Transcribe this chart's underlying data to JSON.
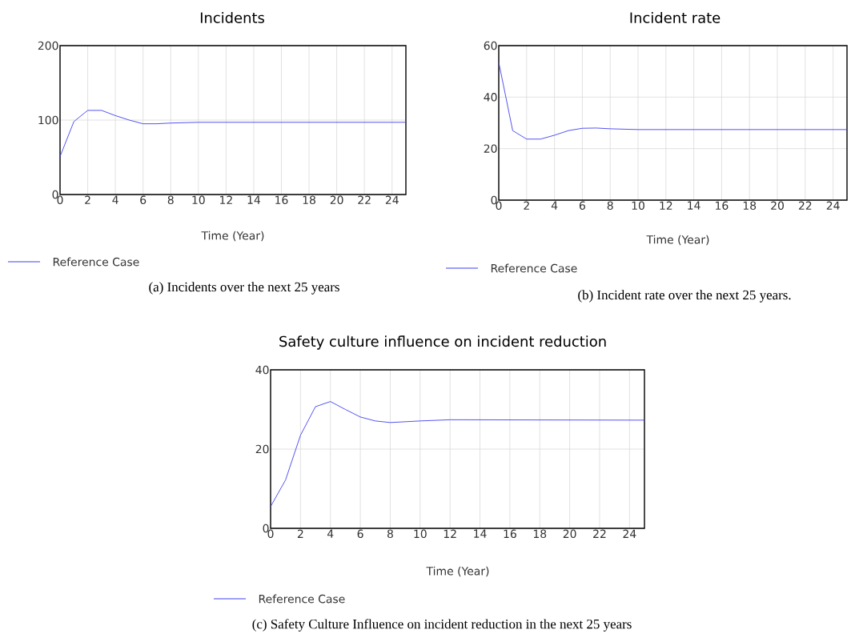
{
  "chart_data": [
    {
      "type": "line",
      "title": "Incidents",
      "xlabel": "Time (Year)",
      "x": [
        0,
        1,
        2,
        3,
        4,
        5,
        6,
        7,
        8,
        10,
        25
      ],
      "xlim": [
        0,
        25
      ],
      "xticks": [
        0,
        2,
        4,
        6,
        8,
        10,
        12,
        14,
        16,
        18,
        20,
        22,
        24
      ],
      "ylim": [
        0,
        200
      ],
      "yticks": [
        0,
        100,
        200
      ],
      "grid": true,
      "legend": "bottom",
      "marker": "none",
      "line_style": "solid",
      "series": [
        {
          "name": "Reference Case",
          "color": "#4040f0",
          "values": [
            51,
            98,
            113,
            113,
            106,
            100,
            95,
            95,
            96,
            97,
            97
          ]
        }
      ],
      "annotations": [
        "(a) Incidents over the next 25 years"
      ]
    },
    {
      "type": "line",
      "title": "Incident rate",
      "xlabel": "Time (Year)",
      "x": [
        0,
        1,
        2,
        3,
        4,
        5,
        6,
        7,
        8,
        10,
        25
      ],
      "xlim": [
        0,
        25
      ],
      "xticks": [
        0,
        2,
        4,
        6,
        8,
        10,
        12,
        14,
        16,
        18,
        20,
        22,
        24
      ],
      "ylim": [
        0,
        60
      ],
      "yticks": [
        0,
        20,
        40,
        60
      ],
      "grid": true,
      "legend": "bottom",
      "marker": "none",
      "line_style": "solid",
      "series": [
        {
          "name": "Reference Case",
          "color": "#4040f0",
          "values": [
            53.5,
            27,
            23.7,
            23.7,
            25.2,
            27,
            27.9,
            28,
            27.7,
            27.4,
            27.4
          ]
        }
      ],
      "annotations": [
        "(b) Incident rate over the next 25 years."
      ]
    },
    {
      "type": "line",
      "title": "Safety culture influence on incident reduction",
      "xlabel": "Time (Year)",
      "x": [
        0,
        1,
        2,
        3,
        4,
        5,
        6,
        7,
        8,
        10,
        12,
        25
      ],
      "xlim": [
        0,
        25
      ],
      "xticks": [
        0,
        2,
        4,
        6,
        8,
        10,
        12,
        14,
        16,
        18,
        20,
        22,
        24
      ],
      "ylim": [
        0,
        40
      ],
      "yticks": [
        0,
        20,
        40
      ],
      "grid": true,
      "legend": "bottom",
      "marker": "none",
      "line_style": "solid",
      "series": [
        {
          "name": "Reference Case",
          "color": "#4040f0",
          "values": [
            5.5,
            12.2,
            23.5,
            30.7,
            32,
            30,
            28.1,
            27.1,
            26.7,
            27.1,
            27.4,
            27.3
          ]
        }
      ],
      "annotations": [
        "(c) Safety Culture Influence on incident reduction in the next 25 years"
      ]
    }
  ]
}
